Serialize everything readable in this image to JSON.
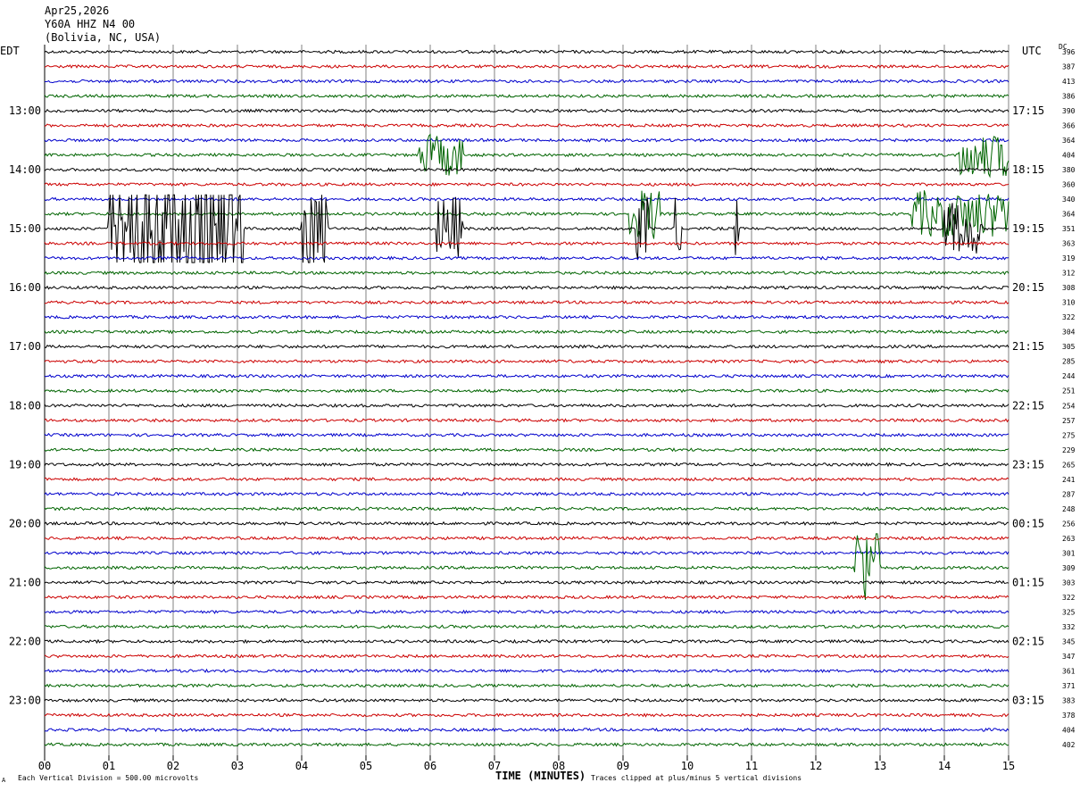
{
  "header": {
    "date": "Apr25,2026",
    "station": "Y60A HHZ N4 00",
    "location": "(Bolivia, NC, USA)"
  },
  "corner_labels": {
    "left": "EDT",
    "right": "UTC",
    "dc": "DC"
  },
  "footer": {
    "scale_note": "Each Vertical Division =  500.00 microvolts",
    "clip_note": "Traces clipped at plus/minus 5 vertical divisions",
    "corner_mark": "A"
  },
  "colors": {
    "black": "#000000",
    "red": "#cc0000",
    "blue": "#0000cc",
    "green": "#006400",
    "grid": "#808080"
  },
  "chart_data": {
    "type": "line",
    "title": "Y60A HHZ N4 00",
    "xlabel": "TIME (MINUTES)",
    "ylabel": "",
    "xlim": [
      0,
      15
    ],
    "x_ticks": [
      "00",
      "01",
      "02",
      "03",
      "04",
      "05",
      "06",
      "07",
      "08",
      "09",
      "10",
      "11",
      "12",
      "13",
      "14",
      "15"
    ],
    "line_count": 48,
    "minutes_per_line": 15,
    "trace_color_cycle": [
      "black",
      "red",
      "blue",
      "green"
    ],
    "left_time_labels": [
      {
        "line": 4,
        "text": "13:00"
      },
      {
        "line": 8,
        "text": "14:00"
      },
      {
        "line": 12,
        "text": "15:00"
      },
      {
        "line": 16,
        "text": "16:00"
      },
      {
        "line": 20,
        "text": "17:00"
      },
      {
        "line": 24,
        "text": "18:00"
      },
      {
        "line": 28,
        "text": "19:00"
      },
      {
        "line": 32,
        "text": "20:00"
      },
      {
        "line": 36,
        "text": "21:00"
      },
      {
        "line": 40,
        "text": "22:00"
      },
      {
        "line": 44,
        "text": "23:00"
      }
    ],
    "right_time_labels": [
      {
        "line": 4,
        "text": "17:15"
      },
      {
        "line": 8,
        "text": "18:15"
      },
      {
        "line": 12,
        "text": "19:15"
      },
      {
        "line": 16,
        "text": "20:15"
      },
      {
        "line": 20,
        "text": "21:15"
      },
      {
        "line": 24,
        "text": "22:15"
      },
      {
        "line": 28,
        "text": "23:15"
      },
      {
        "line": 32,
        "text": "00:15"
      },
      {
        "line": 36,
        "text": "01:15"
      },
      {
        "line": 40,
        "text": "02:15"
      },
      {
        "line": 44,
        "text": "03:15"
      }
    ],
    "dc_offsets": [
      396,
      387,
      413,
      386,
      390,
      366,
      364,
      404,
      380,
      360,
      340,
      364,
      351,
      363,
      319,
      312,
      308,
      310,
      322,
      304,
      305,
      285,
      244,
      251,
      254,
      257,
      275,
      229,
      265,
      241,
      287,
      248,
      256,
      263,
      301,
      309,
      303,
      322,
      325,
      332,
      345,
      347,
      361,
      371,
      383,
      378,
      404,
      402
    ],
    "events": [
      {
        "line": 11,
        "start_min": 9.1,
        "end_min": 9.6,
        "amplitude": 1.8
      },
      {
        "line": 11,
        "start_min": 13.5,
        "end_min": 15,
        "amplitude": 1.6
      },
      {
        "line": 12,
        "start_min": 1.0,
        "end_min": 3.1,
        "amplitude": 5
      },
      {
        "line": 12,
        "start_min": 4.0,
        "end_min": 4.4,
        "amplitude": 3
      },
      {
        "line": 12,
        "start_min": 6.1,
        "end_min": 6.5,
        "amplitude": 2.2
      },
      {
        "line": 12,
        "start_min": 9.2,
        "end_min": 9.4,
        "amplitude": 2.2
      },
      {
        "line": 12,
        "start_min": 9.8,
        "end_min": 9.9,
        "amplitude": 2.2
      },
      {
        "line": 12,
        "start_min": 10.7,
        "end_min": 10.8,
        "amplitude": 2
      },
      {
        "line": 12,
        "start_min": 14.0,
        "end_min": 14.6,
        "amplitude": 1.8
      },
      {
        "line": 7,
        "start_min": 5.8,
        "end_min": 6.5,
        "amplitude": 1.4
      },
      {
        "line": 7,
        "start_min": 14.2,
        "end_min": 15,
        "amplitude": 1.5
      },
      {
        "line": 35,
        "start_min": 12.6,
        "end_min": 13.0,
        "amplitude": 2.8
      }
    ]
  }
}
